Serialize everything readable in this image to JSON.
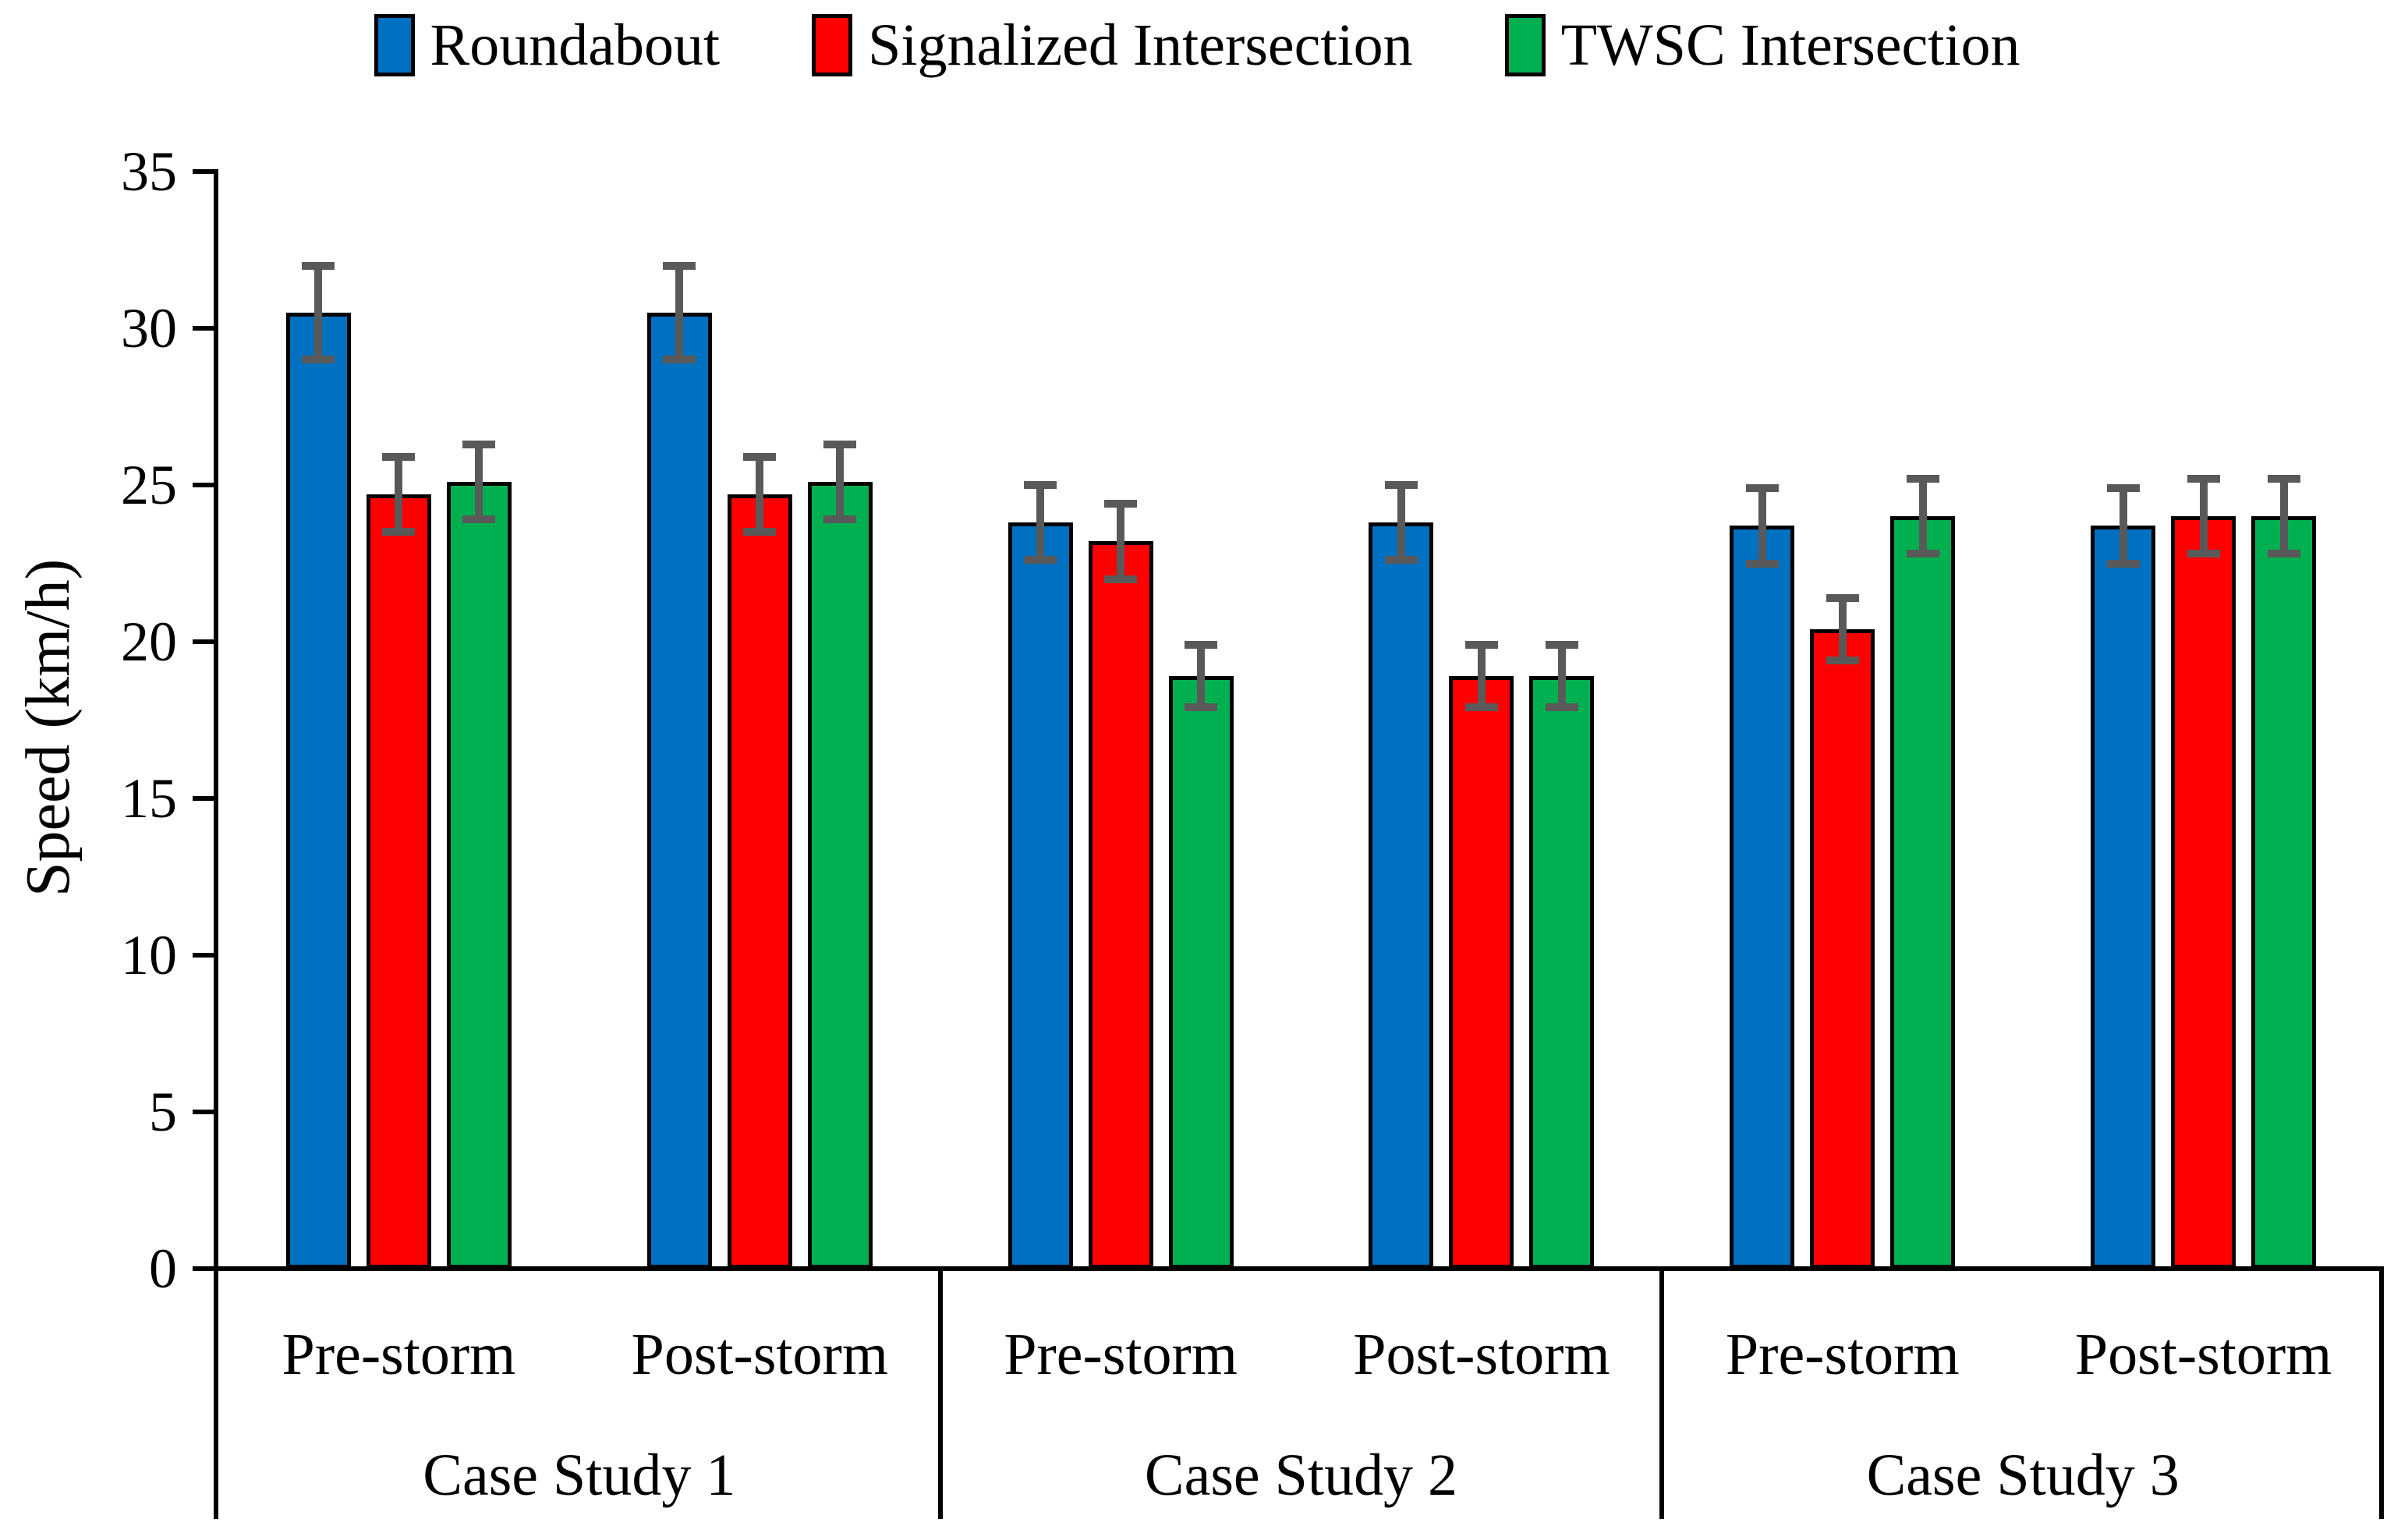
{
  "chart_data": {
    "type": "bar",
    "title": "",
    "xlabel": "",
    "ylabel": "Speed (km/h)",
    "ylim": [
      0,
      35
    ],
    "y_ticks": [
      0,
      5,
      10,
      15,
      20,
      25,
      30,
      35
    ],
    "grid": false,
    "legend_position": "top",
    "error_bars": true,
    "error_bar_color": "#595959",
    "bar_border_color": "#000000",
    "series": [
      {
        "name": "Roundabout",
        "color": "#0070C0"
      },
      {
        "name": "Signalized Intersection",
        "color": "#FF0000"
      },
      {
        "name": "TWSC Intersection",
        "color": "#00B050"
      }
    ],
    "case_studies": [
      "Case Study 1",
      "Case Study 2",
      "Case Study 3"
    ],
    "conditions": [
      "Pre-storm",
      "Post-storm"
    ],
    "groups": [
      {
        "case_study": "Case Study 1",
        "condition": "Pre-storm",
        "values": [
          30.5,
          24.7,
          25.1
        ],
        "errors": [
          1.5,
          1.2,
          1.2
        ]
      },
      {
        "case_study": "Case Study 1",
        "condition": "Post-storm",
        "values": [
          30.5,
          24.7,
          25.1
        ],
        "errors": [
          1.5,
          1.2,
          1.2
        ]
      },
      {
        "case_study": "Case Study 2",
        "condition": "Pre-storm",
        "values": [
          23.8,
          23.2,
          18.9
        ],
        "errors": [
          1.2,
          1.2,
          1.0
        ]
      },
      {
        "case_study": "Case Study 2",
        "condition": "Post-storm",
        "values": [
          23.8,
          18.9,
          18.9
        ],
        "errors": [
          1.2,
          1.0,
          1.0
        ]
      },
      {
        "case_study": "Case Study 3",
        "condition": "Pre-storm",
        "values": [
          23.7,
          20.4,
          24.0
        ],
        "errors": [
          1.2,
          1.0,
          1.2
        ]
      },
      {
        "case_study": "Case Study 3",
        "condition": "Post-storm",
        "values": [
          23.7,
          24.0,
          24.0
        ],
        "errors": [
          1.2,
          1.2,
          1.2
        ]
      }
    ]
  }
}
